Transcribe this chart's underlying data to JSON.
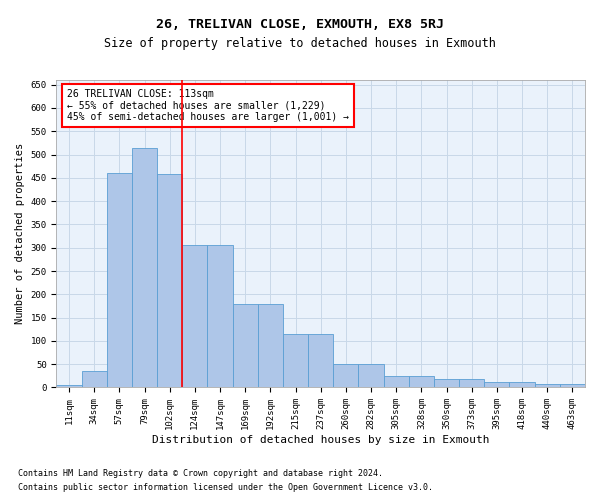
{
  "title": "26, TRELIVAN CLOSE, EXMOUTH, EX8 5RJ",
  "subtitle": "Size of property relative to detached houses in Exmouth",
  "xlabel": "Distribution of detached houses by size in Exmouth",
  "ylabel": "Number of detached properties",
  "categories": [
    "11sqm",
    "34sqm",
    "57sqm",
    "79sqm",
    "102sqm",
    "124sqm",
    "147sqm",
    "169sqm",
    "192sqm",
    "215sqm",
    "237sqm",
    "260sqm",
    "282sqm",
    "305sqm",
    "328sqm",
    "350sqm",
    "373sqm",
    "395sqm",
    "418sqm",
    "440sqm",
    "463sqm"
  ],
  "values": [
    5,
    35,
    460,
    515,
    458,
    305,
    305,
    180,
    180,
    115,
    115,
    50,
    50,
    25,
    25,
    18,
    18,
    12,
    12,
    8,
    8
  ],
  "bar_color": "#aec6e8",
  "bar_edge_color": "#5a9fd4",
  "grid_color": "#c8d8e8",
  "background_color": "#eaf2fb",
  "property_label": "26 TRELIVAN CLOSE: 113sqm",
  "annotation_line1": "← 55% of detached houses are smaller (1,229)",
  "annotation_line2": "45% of semi-detached houses are larger (1,001) →",
  "red_line_x": 4.5,
  "ylim": [
    0,
    660
  ],
  "yticks": [
    0,
    50,
    100,
    150,
    200,
    250,
    300,
    350,
    400,
    450,
    500,
    550,
    600,
    650
  ],
  "footnote1": "Contains HM Land Registry data © Crown copyright and database right 2024.",
  "footnote2": "Contains public sector information licensed under the Open Government Licence v3.0.",
  "title_fontsize": 9.5,
  "subtitle_fontsize": 8.5,
  "xlabel_fontsize": 8,
  "ylabel_fontsize": 7.5,
  "tick_fontsize": 6.5,
  "annotation_fontsize": 7,
  "footnote_fontsize": 6
}
